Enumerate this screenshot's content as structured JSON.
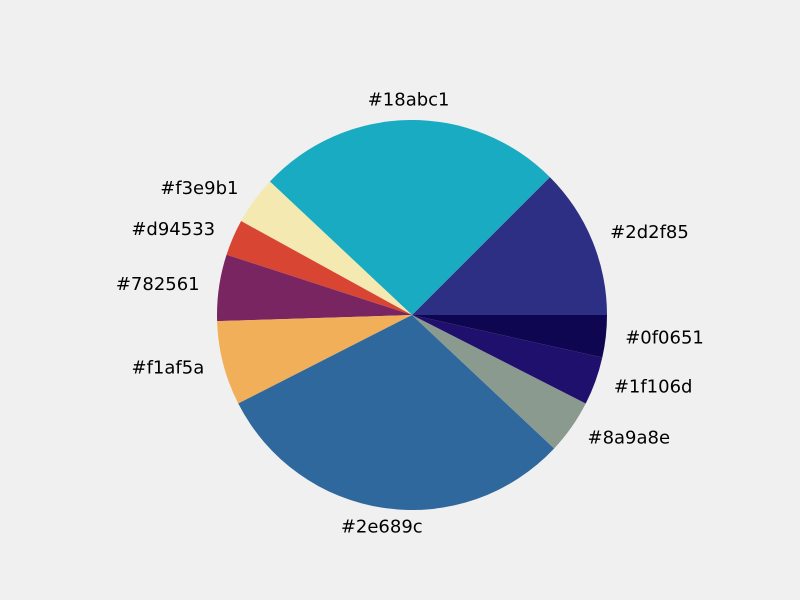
{
  "chart_data": {
    "type": "pie",
    "start_angle_deg": 0,
    "direction": "counterclockwise",
    "background": "#f0f0f0",
    "slices": [
      {
        "label": "#2d2f85",
        "value": 12.5,
        "color": "#2d2f85"
      },
      {
        "label": "#18abc1",
        "value": 25.5,
        "color": "#18abc1"
      },
      {
        "label": "#f3e9b1",
        "value": 4.0,
        "color": "#f3e9b1"
      },
      {
        "label": "#d94533",
        "value": 3.0,
        "color": "#d94533"
      },
      {
        "label": "#782561",
        "value": 5.5,
        "color": "#782561"
      },
      {
        "label": "#f1af5a",
        "value": 7.0,
        "color": "#f1af5a"
      },
      {
        "label": "#2e689c",
        "value": 30.5,
        "color": "#2e689c"
      },
      {
        "label": "#8a9a8e",
        "value": 4.5,
        "color": "#8a9a8e"
      },
      {
        "label": "#1f106d",
        "value": 4.0,
        "color": "#1f106d"
      },
      {
        "label": "#0f0651",
        "value": 3.5,
        "color": "#0f0651"
      }
    ]
  }
}
